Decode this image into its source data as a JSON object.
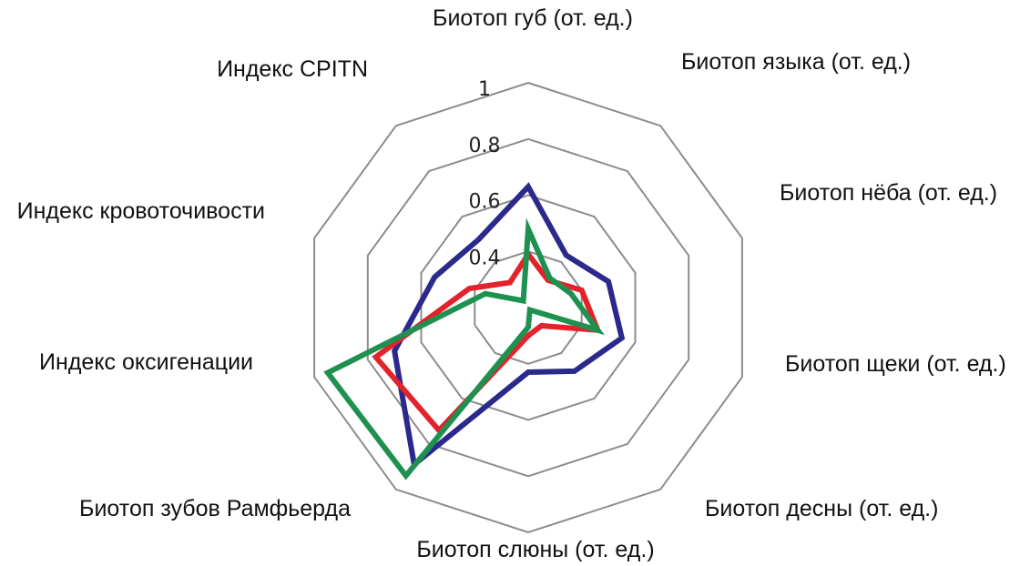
{
  "chart_data": {
    "type": "radar",
    "axes": [
      "Биотоп губ (от. ед.)",
      "Биотоп языка (от. ед.)",
      "Биотоп нёба (от. ед.)",
      "Биотоп щеки (от. ед.)",
      "Биотоп десны (от. ед.)",
      "Биотоп слюны (от. ед.)",
      "Биотоп зубов Рамфьерда",
      "Индекс оксигенации",
      "Индекс кровоточивости",
      "Индекс CPITN"
    ],
    "rlim": [
      0.2,
      1.0
    ],
    "ticks": [
      0.2,
      0.4,
      0.6,
      0.8,
      1.0
    ],
    "tick_labels": [
      "",
      "0.4",
      "0.6",
      "0.8",
      "1"
    ],
    "grid": true,
    "series": [
      {
        "color": "#2B2A8C",
        "values": [
          0.63,
          0.43,
          0.5,
          0.55,
          0.48,
          0.43,
          0.89,
          0.7,
          0.55,
          0.5
        ]
      },
      {
        "color": "#E3222B",
        "values": [
          0.39,
          0.32,
          0.4,
          0.46,
          0.28,
          0.3,
          0.74,
          0.77,
          0.42,
          0.31
        ]
      },
      {
        "color": "#1E9150",
        "values": [
          0.48,
          0.33,
          0.36,
          0.46,
          0.21,
          0.27,
          0.94,
          0.95,
          0.36,
          0.23
        ]
      }
    ]
  }
}
